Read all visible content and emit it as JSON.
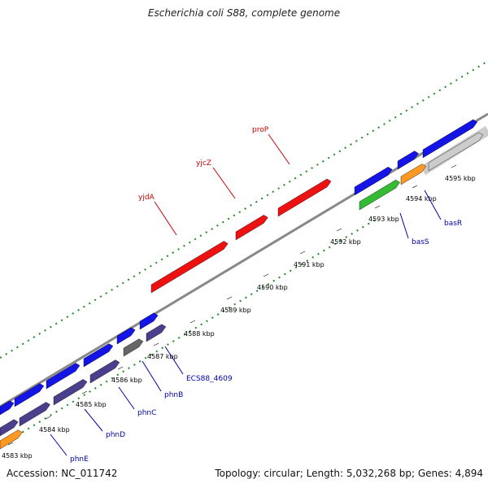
{
  "title": "Escherichia coli S88, complete genome",
  "footer": {
    "accession": "Accession: NC_011742",
    "summary": "Topology: circular; Length: 5,032,268 bp; Genes: 4,894"
  },
  "colors": {
    "forward_cds": "#1414e6",
    "reverse_cds": "#4a3f8c",
    "highlight": "#ee1111",
    "rrna": "#33bb33",
    "trna": "#ff9922",
    "other": "#666666",
    "label_blue": "#0000aa",
    "label_red": "#cc0000",
    "gc_dots": "#228822"
  },
  "axis": {
    "ticks": [
      {
        "label": "4583 kbp"
      },
      {
        "label": "4584 kbp"
      },
      {
        "label": "4585 kbp"
      },
      {
        "label": "4586 kbp"
      },
      {
        "label": "4587 kbp"
      },
      {
        "label": "4588 kbp"
      },
      {
        "label": "4589 kbp"
      },
      {
        "label": "4590 kbp"
      },
      {
        "label": "4591 kbp"
      },
      {
        "label": "4592 kbp"
      },
      {
        "label": "4593 kbp"
      },
      {
        "label": "4594 kbp"
      },
      {
        "label": "4595 kbp"
      }
    ]
  },
  "gene_labels": [
    {
      "text": "phnE",
      "color": "blue"
    },
    {
      "text": "phnD",
      "color": "blue"
    },
    {
      "text": "phnC",
      "color": "blue"
    },
    {
      "text": "phnB",
      "color": "blue"
    },
    {
      "text": "ECS88_4609",
      "color": "blue"
    },
    {
      "text": "basS",
      "color": "blue"
    },
    {
      "text": "basR",
      "color": "blue"
    },
    {
      "text": "yjdA",
      "color": "red"
    },
    {
      "text": "yjcZ",
      "color": "red"
    },
    {
      "text": "proP",
      "color": "red"
    }
  ]
}
